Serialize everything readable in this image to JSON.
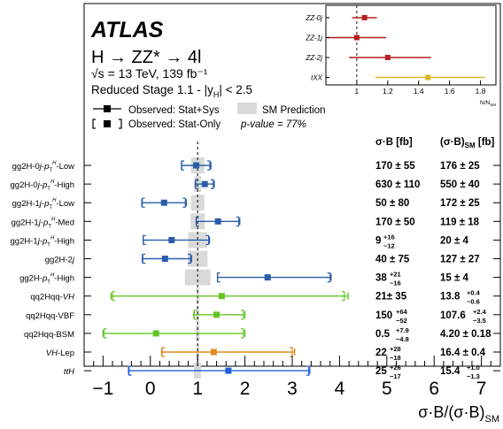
{
  "header": {
    "experiment": "ATLAS",
    "process": "H → ZZ* → 4l",
    "energy": "√s = 13 TeV, 139 fb⁻¹",
    "stage": "Reduced Stage 1.1 - |y",
    "stage_sub": "H",
    "stage_end": "| < 2.5",
    "pvalue": "p-value = 77%"
  },
  "legend": {
    "stat_sys": "Observed: Stat+Sys",
    "stat_only": "Observed: Stat-Only",
    "sm": "SM Prediction"
  },
  "table": {
    "col1": "σ·B [fb]",
    "col2": "(σ·B)",
    "col2_sub": "SM",
    "col2_end": " [fb]"
  },
  "chart_data": [
    {
      "type": "scatter",
      "xlabel": "σ·B/(σ·B)",
      "xlabel_sub": "SM",
      "xlim": [
        -1.4,
        7.4
      ],
      "xticks": [
        -1,
        0,
        1,
        2,
        3,
        4,
        5,
        6,
        7
      ],
      "sm_value": 1.0,
      "colors": {
        "ggF": "#2a5caa",
        "VBF": "#63c427",
        "VH": "#e08a1e",
        "ttH": "#1f5fdd",
        "sm_band": "#d9d9d9"
      },
      "rows": [
        {
          "label": "gg2H-0j-pT-Low",
          "label_parts": [
            "gg2H-0",
            "j",
            "-",
            "p",
            "T",
            "H",
            "-Low"
          ],
          "value": 0.97,
          "stat_sys": [
            0.66,
            1.28
          ],
          "stat_only": [
            0.66,
            1.26
          ],
          "sm_unc": [
            0.86,
            1.14
          ],
          "color": "#2a5caa",
          "xs": "170 ± 55",
          "xs_sm": "176 ± 25"
        },
        {
          "label": "gg2H-0j-pT-High",
          "label_parts": [
            "gg2H-0",
            "j",
            "-",
            "p",
            "T",
            "H",
            "-High"
          ],
          "value": 1.15,
          "stat_sys": [
            0.95,
            1.35
          ],
          "stat_only": [
            0.96,
            1.33
          ],
          "sm_unc": [
            0.93,
            1.07
          ],
          "color": "#2a5caa",
          "xs": "630 ± 110",
          "xs_sm": "550 ± 40"
        },
        {
          "label": "gg2H-1j-pT-Low",
          "label_parts": [
            "gg2H-1",
            "j",
            "-",
            "p",
            "T",
            "H",
            "-Low"
          ],
          "value": 0.29,
          "stat_sys": [
            -0.18,
            0.76
          ],
          "stat_only": [
            -0.17,
            0.74
          ],
          "sm_unc": [
            0.86,
            1.14
          ],
          "color": "#2a5caa",
          "xs": "50 ± 80",
          "xs_sm": "172 ± 25"
        },
        {
          "label": "gg2H-1j-pT-Med",
          "label_parts": [
            "gg2H-1",
            "j",
            "-",
            "p",
            "T",
            "H",
            "-Med"
          ],
          "value": 1.43,
          "stat_sys": [
            0.97,
            1.89
          ],
          "stat_only": [
            0.97,
            1.87
          ],
          "sm_unc": [
            0.85,
            1.15
          ],
          "color": "#2a5caa",
          "xs": "170 ± 50",
          "xs_sm": "119 ± 18"
        },
        {
          "label": "gg2H-1j-pT-High",
          "label_parts": [
            "gg2H-1",
            "j",
            "-",
            "p",
            "T",
            "H",
            "-High"
          ],
          "value": 0.45,
          "stat_sys": [
            -0.15,
            1.25
          ],
          "stat_only": [
            -0.15,
            1.23
          ],
          "sm_unc": [
            0.8,
            1.2
          ],
          "color": "#2a5caa",
          "xs": "9 +16 −12",
          "xs_up": "+16",
          "xs_dn": "−12",
          "xs_val": "9",
          "xs_sm": "20 ± 4"
        },
        {
          "label": "gg2H-2j",
          "label_parts": [
            "gg2H-2",
            "j",
            "",
            "",
            "",
            "",
            ""
          ],
          "value": 0.31,
          "stat_sys": [
            -0.17,
            0.87
          ],
          "stat_only": [
            -0.16,
            0.85
          ],
          "sm_unc": [
            0.79,
            1.21
          ],
          "color": "#2a5caa",
          "xs": "40 ± 75",
          "xs_sm": "127 ± 27"
        },
        {
          "label": "gg2H-pT-High",
          "label_parts": [
            "gg2H-",
            "",
            "",
            "p",
            "T",
            "H",
            "-High"
          ],
          "value": 2.48,
          "stat_sys": [
            1.42,
            3.82
          ],
          "stat_only": [
            1.42,
            3.8
          ],
          "sm_unc": [
            0.73,
            1.27
          ],
          "color": "#2a5caa",
          "xs": "38 +21 −16",
          "xs_up": "+21",
          "xs_dn": "−16",
          "xs_val": "38",
          "xs_sm": "15 ± 4"
        },
        {
          "label": "qq2Hqq-VH",
          "label_parts": [
            "qq2Hqq-",
            "VH",
            "",
            "",
            "",
            "",
            ""
          ],
          "value": 1.51,
          "stat_sys": [
            -0.83,
            4.18
          ],
          "stat_only": [
            -0.8,
            4.1
          ],
          "sm_unc": [
            0.97,
            1.03
          ],
          "color": "#63c427",
          "xs": "21± 35",
          "xs_sm": "13.8 +0.4 −0.6",
          "xs_sm_val": "13.8",
          "xs_sm_up": "+0.4",
          "xs_sm_dn": "−0.6"
        },
        {
          "label": "qq2Hqq-VBF",
          "label_parts": [
            "qq2Hqq-VBF",
            "",
            "",
            "",
            "",
            "",
            ""
          ],
          "value": 1.4,
          "stat_sys": [
            0.92,
            2.0
          ],
          "stat_only": [
            0.93,
            1.97
          ],
          "sm_unc": [
            0.97,
            1.03
          ],
          "color": "#63c427",
          "xs": "150 +64 −52",
          "xs_up": "+64",
          "xs_dn": "−52",
          "xs_val": "150",
          "xs_sm": "107.6 +2.4 −3.5",
          "xs_sm_val": "107.6",
          "xs_sm_up": "+2.4",
          "xs_sm_dn": "−3.5"
        },
        {
          "label": "qq2Hqq-BSM",
          "label_parts": [
            "qq2Hqq-BSM",
            "",
            "",
            "",
            "",
            "",
            ""
          ],
          "value": 0.12,
          "stat_sys": [
            -1.0,
            2.0
          ],
          "stat_only": [
            -0.98,
            1.97
          ],
          "sm_unc": [
            0.96,
            1.04
          ],
          "color": "#63c427",
          "xs": "0.5 +7.9 −4.8",
          "xs_up": "+7.9",
          "xs_dn": "−4.8",
          "xs_val": "0.5",
          "xs_sm": "4.20 ± 0.18"
        },
        {
          "label": "VH-Lep",
          "label_parts": [
            "",
            "VH",
            "-Lep",
            "",
            "",
            "",
            ""
          ],
          "value": 1.34,
          "stat_sys": [
            0.24,
            3.05
          ],
          "stat_only": [
            0.25,
            3.0
          ],
          "sm_unc": [
            0.97,
            1.03
          ],
          "color": "#e08a1e",
          "xs": "22 +28 −18",
          "xs_up": "+28",
          "xs_dn": "−18",
          "xs_val": "22",
          "xs_sm": "16.4 ± 0.4"
        },
        {
          "label": "ttH",
          "label_parts": [
            "",
            "ttH",
            "",
            "",
            "",
            "",
            ""
          ],
          "value": 1.65,
          "stat_sys": [
            -0.46,
            3.37
          ],
          "stat_only": [
            -0.45,
            3.35
          ],
          "sm_unc": [
            0.92,
            1.07
          ],
          "color": "#1f5fdd",
          "xs": "25 +26 −17",
          "xs_up": "+26",
          "xs_dn": "−17",
          "xs_val": "25",
          "xs_sm": "15.4 +1.0 −1.3",
          "xs_sm_val": "15.4",
          "xs_sm_up": "+1.0",
          "xs_sm_dn": "−1.3"
        }
      ]
    },
    {
      "type": "scatter",
      "xlabel": "N/N",
      "xlabel_sub": "SM",
      "xlim": [
        0.8,
        1.9
      ],
      "xticks": [
        1,
        1.2,
        1.4,
        1.6,
        1.8
      ],
      "xticklabels": [
        "1",
        "1.2",
        "1.4",
        "1.6",
        "1.8"
      ],
      "rows": [
        {
          "label": "ZZ-0j",
          "value": 1.05,
          "err": [
            0.97,
            1.13
          ],
          "color": "#b51f1f"
        },
        {
          "label": "ZZ-1j",
          "value": 1.0,
          "err": [
            0.81,
            1.19
          ],
          "color": "#b51f1f"
        },
        {
          "label": "ZZ-2j",
          "value": 1.2,
          "err": [
            0.95,
            1.48
          ],
          "color": "#b51f1f"
        },
        {
          "label": "tXX",
          "value": 1.46,
          "err": [
            1.12,
            1.83
          ],
          "color": "#d6b624"
        }
      ]
    }
  ]
}
